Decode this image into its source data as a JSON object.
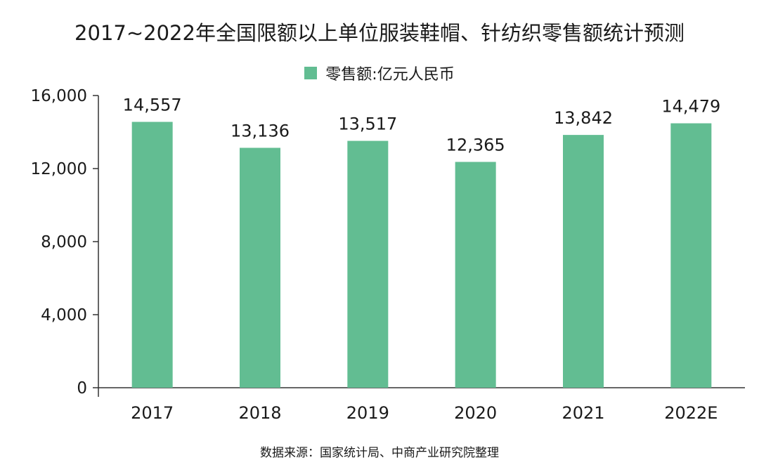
{
  "chart_data": {
    "type": "bar",
    "title": "2017~2022年全国限额以上单位服装鞋帽、针纺织零售额统计预测",
    "categories": [
      "2017",
      "2018",
      "2019",
      "2020",
      "2021",
      "2022E"
    ],
    "series": [
      {
        "name": "零售额:亿元人民币",
        "values": [
          14557,
          13136,
          13517,
          12365,
          13842,
          14479
        ],
        "value_labels": [
          "14,557",
          "13,136",
          "13,517",
          "12,365",
          "13,842",
          "14,479"
        ],
        "color": "#62bd92"
      }
    ],
    "ylim": [
      0,
      16000
    ],
    "yticks": [
      0,
      4000,
      8000,
      12000,
      16000
    ],
    "ytick_labels": [
      "0",
      "4,000",
      "8,000",
      "12,000",
      "16,000"
    ],
    "grid": false,
    "legend_position": "top-center"
  },
  "source": "数据来源：国家统计局、中商产业研究院整理",
  "colors": {
    "bar": "#62bd92",
    "axis": "#333333",
    "text": "#1a1a1a"
  }
}
